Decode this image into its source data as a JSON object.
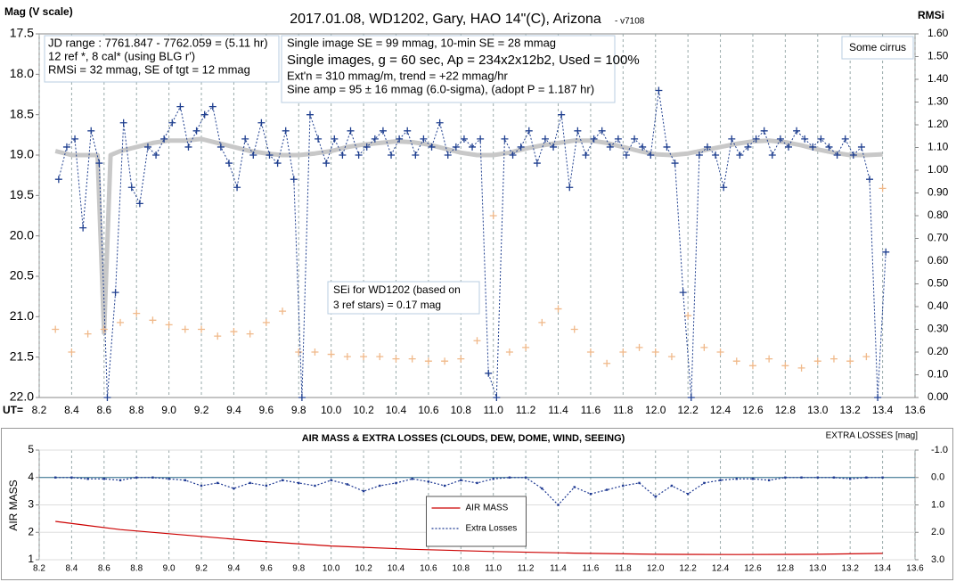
{
  "chart_data": [
    {
      "type": "line",
      "title": "2017.01.08,  WD1202, Gary, HAO  14\"(C), Arizona",
      "subtitle": "- v7108",
      "ylabel": "Mag (V scale)",
      "y2label": "RMSi",
      "xlabel": "UT=",
      "xlim": [
        8.2,
        13.6
      ],
      "xticks": [
        8.2,
        8.4,
        8.6,
        8.8,
        {
          "value": 9,
          "label": "9.0"
        },
        9.2,
        9.4,
        9.6,
        9.8,
        {
          "value": 10,
          "label": "10.0"
        },
        10.2,
        10.4,
        10.6,
        10.8,
        {
          "value": 11,
          "label": "11.0"
        },
        11.2,
        11.4,
        11.6,
        11.8,
        {
          "value": 12,
          "label": "12.0"
        },
        12.2,
        12.4,
        12.6,
        12.8,
        {
          "value": 13,
          "label": "13.0"
        },
        13.2,
        13.4,
        13.6
      ],
      "ylim": [
        22.0,
        17.5
      ],
      "yticks": [
        17.5,
        {
          "value": 18,
          "label": "18.0"
        },
        18.5,
        {
          "value": 19,
          "label": "19.0"
        },
        19.5,
        {
          "value": 20,
          "label": "20.0"
        },
        20.5,
        {
          "value": 21,
          "label": "21.0"
        },
        21.5,
        {
          "value": 22,
          "label": "22.0"
        }
      ],
      "y2lim": [
        0,
        1.6
      ],
      "y2ticks": [
        {
          "value": 0,
          "label": "0.00"
        },
        {
          "value": 0.1,
          "label": "0.10"
        },
        {
          "value": 0.2,
          "label": "0.20"
        },
        {
          "value": 0.3,
          "label": "0.30"
        },
        {
          "value": 0.4,
          "label": "0.40"
        },
        {
          "value": 0.5,
          "label": "0.50"
        },
        {
          "value": 0.6,
          "label": "0.60"
        },
        {
          "value": 0.7,
          "label": "0.70"
        },
        {
          "value": 0.8,
          "label": "0.80"
        },
        {
          "value": 0.9,
          "label": "0.90"
        },
        {
          "value": 1.0,
          "label": "1.00"
        },
        {
          "value": 1.1,
          "label": "1.10"
        },
        {
          "value": 1.2,
          "label": "1.20"
        },
        {
          "value": 1.3,
          "label": "1.30"
        },
        {
          "value": 1.4,
          "label": "1.40"
        },
        {
          "value": 1.5,
          "label": "1.50"
        },
        {
          "value": 1.6,
          "label": "1.60"
        }
      ],
      "grid": "x",
      "series": [
        {
          "color": "#c8c8c8",
          "line": "solid",
          "width": 5,
          "x": [
            8.3,
            8.4,
            8.5,
            8.56,
            8.6,
            8.64,
            8.7,
            8.8,
            8.9,
            9.0,
            9.1,
            9.2,
            9.3,
            9.4,
            9.5,
            9.6,
            9.7,
            9.8,
            9.9,
            10.0,
            10.1,
            10.2,
            10.3,
            10.4,
            10.5,
            10.6,
            10.7,
            10.8,
            10.9,
            11.0,
            11.1,
            11.2,
            11.3,
            11.4,
            11.5,
            11.6,
            11.7,
            11.8,
            11.9,
            12.0,
            12.1,
            12.2,
            12.3,
            12.4,
            12.5,
            12.6,
            12.7,
            12.8,
            12.9,
            13.0,
            13.1,
            13.2,
            13.3,
            13.4
          ],
          "values": [
            18.95,
            19.0,
            19.0,
            19.0,
            21.2,
            19.0,
            18.95,
            18.9,
            18.85,
            18.82,
            18.82,
            18.8,
            18.85,
            18.9,
            18.95,
            18.98,
            19.0,
            19.0,
            18.98,
            18.95,
            18.9,
            18.87,
            18.85,
            18.83,
            18.84,
            18.87,
            18.92,
            18.97,
            19.0,
            19.0,
            18.97,
            18.92,
            18.88,
            18.85,
            18.82,
            18.82,
            18.85,
            18.9,
            18.95,
            18.99,
            19.0,
            18.98,
            18.94,
            18.9,
            18.86,
            18.83,
            18.82,
            18.84,
            18.88,
            18.93,
            18.97,
            19.0,
            19.0,
            18.99
          ]
        },
        {
          "color": "#f0b98a",
          "axis": "y2",
          "marker": "plus",
          "x": [
            8.3,
            8.4,
            8.5,
            8.6,
            8.7,
            8.8,
            8.9,
            9.0,
            9.1,
            9.2,
            9.3,
            9.4,
            9.5,
            9.6,
            9.7,
            9.8,
            9.9,
            10.0,
            10.1,
            10.2,
            10.3,
            10.4,
            10.5,
            10.6,
            10.7,
            10.8,
            10.9,
            11.0,
            11.1,
            11.2,
            11.3,
            11.4,
            11.5,
            11.6,
            11.7,
            11.8,
            11.9,
            12.0,
            12.1,
            12.2,
            12.3,
            12.4,
            12.5,
            12.6,
            12.7,
            12.8,
            12.9,
            13.0,
            13.1,
            13.2,
            13.3,
            13.4
          ],
          "values": [
            0.3,
            0.2,
            0.28,
            0.3,
            0.33,
            0.37,
            0.34,
            0.32,
            0.3,
            0.3,
            0.27,
            0.29,
            0.28,
            0.33,
            0.38,
            0.2,
            0.2,
            0.19,
            0.18,
            0.18,
            0.18,
            0.17,
            0.17,
            0.16,
            0.16,
            0.17,
            0.25,
            0.8,
            0.2,
            0.22,
            0.33,
            0.39,
            0.3,
            0.2,
            0.15,
            0.2,
            0.22,
            0.2,
            0.18,
            0.36,
            0.22,
            0.2,
            0.16,
            0.14,
            0.17,
            0.14,
            0.13,
            0.16,
            0.17,
            0.16,
            0.18,
            0.92
          ]
        },
        {
          "color": "#1f3f8f",
          "line": "dotted",
          "marker": "plus",
          "x": [
            8.32,
            8.37,
            8.42,
            8.47,
            8.52,
            8.57,
            8.62,
            8.67,
            8.72,
            8.77,
            8.82,
            8.87,
            8.92,
            8.97,
            9.02,
            9.07,
            9.12,
            9.17,
            9.22,
            9.27,
            9.32,
            9.37,
            9.42,
            9.47,
            9.52,
            9.57,
            9.62,
            9.67,
            9.72,
            9.77,
            9.82,
            9.87,
            9.92,
            9.97,
            10.02,
            10.07,
            10.12,
            10.17,
            10.22,
            10.27,
            10.32,
            10.37,
            10.42,
            10.47,
            10.52,
            10.57,
            10.62,
            10.67,
            10.72,
            10.77,
            10.82,
            10.87,
            10.92,
            10.97,
            11.02,
            11.07,
            11.12,
            11.17,
            11.22,
            11.27,
            11.32,
            11.37,
            11.42,
            11.47,
            11.52,
            11.57,
            11.62,
            11.67,
            11.72,
            11.77,
            11.82,
            11.87,
            11.92,
            11.97,
            12.02,
            12.07,
            12.12,
            12.17,
            12.22,
            12.27,
            12.32,
            12.37,
            12.42,
            12.47,
            12.52,
            12.57,
            12.62,
            12.67,
            12.72,
            12.77,
            12.82,
            12.87,
            12.92,
            12.97,
            13.02,
            13.07,
            13.12,
            13.17,
            13.22,
            13.27,
            13.32,
            13.37,
            13.42
          ],
          "values": [
            19.3,
            18.9,
            18.8,
            19.9,
            18.7,
            19.1,
            22.0,
            20.7,
            18.6,
            19.4,
            19.6,
            18.9,
            19.0,
            18.8,
            18.6,
            18.4,
            18.9,
            18.7,
            18.5,
            18.4,
            18.9,
            19.1,
            19.4,
            18.8,
            19.0,
            18.6,
            19.0,
            19.1,
            18.7,
            19.3,
            22.0,
            18.5,
            18.8,
            19.1,
            18.8,
            19.0,
            18.7,
            19.0,
            18.9,
            18.8,
            18.7,
            19.0,
            18.8,
            18.7,
            19.0,
            18.8,
            18.9,
            18.6,
            19.0,
            18.9,
            18.8,
            18.9,
            18.8,
            21.7,
            22.0,
            18.8,
            19.0,
            18.9,
            18.7,
            19.1,
            18.8,
            18.9,
            18.5,
            19.4,
            18.7,
            19.0,
            18.8,
            18.7,
            18.9,
            18.8,
            19.0,
            18.8,
            18.9,
            19.0,
            18.2,
            18.9,
            19.1,
            20.7,
            22.0,
            19.0,
            18.9,
            19.0,
            19.4,
            18.8,
            19.0,
            18.9,
            18.8,
            18.7,
            19.0,
            18.8,
            18.9,
            18.7,
            18.8,
            18.9,
            18.8,
            18.9,
            19.0,
            18.8,
            19.0,
            18.9,
            19.3,
            22.0,
            20.2
          ]
        }
      ],
      "annotations": [
        {
          "lines": [
            "JD range : 7761.847 - 7762.059  = (5.11 hr)",
            "12 ref *, 8 cal* (using BLG r')",
            "RMSi = 32 mmag, SE of tgt = 12 mmag"
          ]
        },
        {
          "lines": [
            "Single image SE = 99 mmag, 10-min SE = 28 mmag",
            "Single images, g = 60 sec, Ap = 234x2x12b2, Used = 100%",
            "Ext'n = 310 mmag/m, trend = +22 mmag/hr",
            "Sine amp = 95 ± 16 mmag (6.0-sigma), (adopt P = 1.187 hr)"
          ]
        },
        {
          "lines": [
            "Some cirrus"
          ]
        },
        {
          "lines": [
            "SEi for WD1202 (based on",
            "3 ref stars) = 0.17 mag"
          ]
        }
      ]
    },
    {
      "type": "line",
      "title": "AIR MASS & EXTRA LOSSES (CLOUDS, DEW, DOME, WIND, SEEING)",
      "ylabel": "AIR MASS",
      "y2label": "EXTRA LOSSES [mag]",
      "xlim": [
        8.2,
        13.6
      ],
      "xticks": [
        8.2,
        8.4,
        8.6,
        8.8,
        {
          "value": 9,
          "label": "9.0"
        },
        9.2,
        9.4,
        9.6,
        9.8,
        {
          "value": 10,
          "label": "10.0"
        },
        10.2,
        10.4,
        10.6,
        10.8,
        {
          "value": 11,
          "label": "11.0"
        },
        11.2,
        11.4,
        11.6,
        11.8,
        {
          "value": 12,
          "label": "12.0"
        },
        12.2,
        12.4,
        12.6,
        12.8,
        {
          "value": 13,
          "label": "13.0"
        },
        13.2,
        13.4,
        13.6
      ],
      "ylim": [
        1,
        5
      ],
      "yticks": [
        1,
        2,
        3,
        4,
        5
      ],
      "y2lim": [
        3.0,
        -1.0
      ],
      "y2ticks": [
        {
          "value": -1,
          "label": "-1.0"
        },
        {
          "value": 0,
          "label": "0.0"
        },
        {
          "value": 1,
          "label": "1.0"
        },
        {
          "value": 2,
          "label": "2.0"
        },
        {
          "value": 3,
          "label": "3.0"
        }
      ],
      "grid": "both",
      "legend": "center",
      "series": [
        {
          "name": "AIR MASS",
          "color": "#cc0000",
          "line": "solid",
          "width": 1.2,
          "x": [
            8.3,
            8.5,
            8.7,
            9.0,
            9.5,
            10.0,
            10.5,
            11.0,
            11.5,
            12.0,
            12.5,
            13.0,
            13.4
          ],
          "values": [
            2.4,
            2.25,
            2.1,
            1.95,
            1.7,
            1.5,
            1.38,
            1.3,
            1.24,
            1.2,
            1.19,
            1.2,
            1.23
          ]
        },
        {
          "name": "Extra Losses",
          "color": "#1f3a93",
          "axis": "y2",
          "line": "dotted",
          "marker": "dot",
          "width": 1.2,
          "x": [
            8.3,
            8.4,
            8.5,
            8.6,
            8.7,
            8.8,
            8.9,
            9.0,
            9.1,
            9.2,
            9.3,
            9.4,
            9.5,
            9.6,
            9.7,
            9.8,
            9.9,
            10.0,
            10.1,
            10.2,
            10.3,
            10.4,
            10.5,
            10.6,
            10.7,
            10.8,
            10.9,
            11.0,
            11.1,
            11.2,
            11.3,
            11.4,
            11.5,
            11.6,
            11.7,
            11.8,
            11.9,
            12.0,
            12.1,
            12.2,
            12.3,
            12.4,
            12.5,
            12.6,
            12.7,
            12.8,
            12.9,
            13.0,
            13.1,
            13.2,
            13.3,
            13.4
          ],
          "values": [
            0.0,
            0.0,
            0.05,
            0.05,
            0.1,
            0.0,
            0.0,
            0.05,
            0.1,
            0.3,
            0.2,
            0.4,
            0.2,
            0.3,
            0.1,
            0.2,
            0.3,
            0.1,
            0.25,
            0.5,
            0.3,
            0.2,
            0.05,
            0.15,
            0.3,
            0.1,
            0.2,
            0.05,
            0.0,
            0.0,
            0.4,
            1.0,
            0.35,
            0.6,
            0.45,
            0.3,
            0.2,
            0.7,
            0.3,
            0.6,
            0.2,
            0.1,
            0.05,
            0.05,
            0.1,
            0.0,
            0.0,
            0.0,
            0.0,
            0.05,
            0.0,
            0.0
          ]
        }
      ]
    }
  ]
}
